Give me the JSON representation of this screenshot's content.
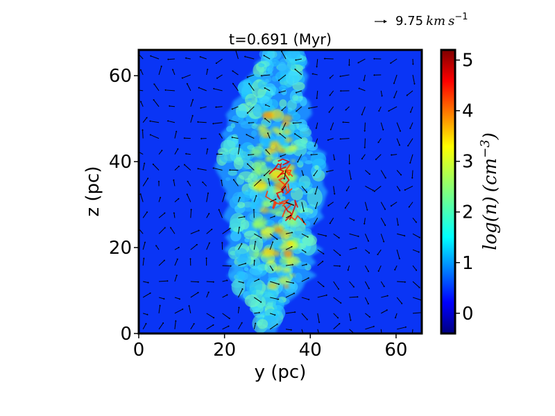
{
  "chart_data": {
    "type": "heatmap",
    "title": "t=0.691 (Myr)",
    "xlabel": "y (pc)",
    "ylabel": "z (pc)",
    "xlim": [
      0,
      66
    ],
    "ylim": [
      0,
      66
    ],
    "x_ticks": [
      "0",
      "20",
      "40",
      "60"
    ],
    "y_ticks": [
      "0",
      "20",
      "40",
      "60"
    ],
    "x_tick_values": [
      0,
      20,
      40,
      60
    ],
    "y_tick_values": [
      0,
      20,
      40,
      60
    ],
    "colorbar": {
      "label": "log(n) (cm⁻³)",
      "label_parts": {
        "func": "log(n)",
        "unit": "(cm",
        "exp": "−3",
        "close": ")"
      },
      "range": [
        -0.4,
        5.2
      ],
      "ticks": [
        "0",
        "1",
        "2",
        "3",
        "4",
        "5"
      ],
      "tick_values": [
        0,
        1,
        2,
        3,
        4,
        5
      ],
      "colormap": "jet"
    },
    "quiver_key": {
      "value": "9.75",
      "units": "km s⁻¹",
      "units_km": "km",
      "units_s": "s",
      "units_exp": "−1"
    },
    "cloud": {
      "center_x": 32,
      "spine_x_by_z": [
        [
          1,
          30
        ],
        [
          8,
          30
        ],
        [
          16,
          31
        ],
        [
          24,
          31
        ],
        [
          32,
          32
        ],
        [
          40,
          31
        ],
        [
          48,
          30
        ],
        [
          56,
          31
        ],
        [
          62,
          33
        ],
        [
          66,
          34
        ]
      ],
      "half_width_by_z": [
        [
          1,
          2
        ],
        [
          6,
          3
        ],
        [
          10,
          8
        ],
        [
          16,
          10
        ],
        [
          24,
          10
        ],
        [
          32,
          11
        ],
        [
          40,
          13
        ],
        [
          48,
          10
        ],
        [
          56,
          8
        ],
        [
          62,
          6
        ],
        [
          66,
          4
        ]
      ]
    },
    "colors": {
      "background_level": 0.0,
      "frame": "#000000"
    }
  }
}
